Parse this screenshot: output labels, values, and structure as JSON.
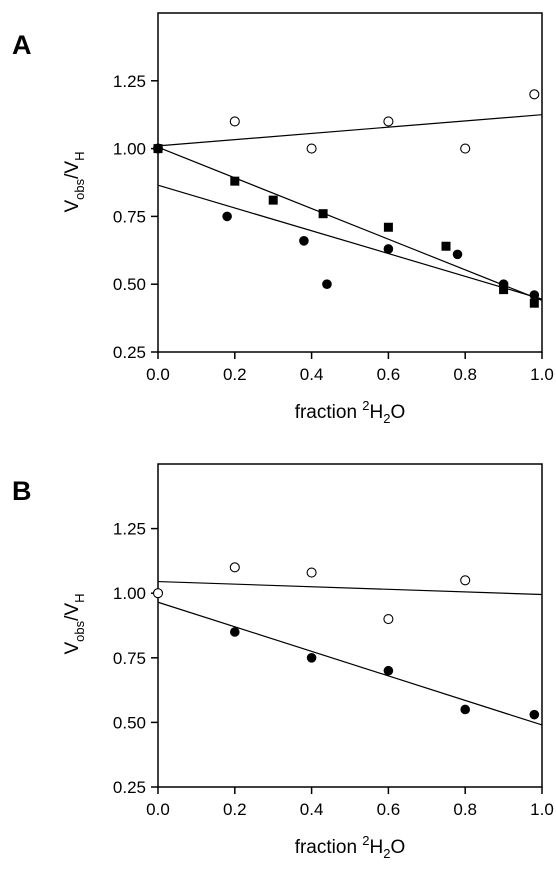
{
  "chart_data": [
    {
      "type": "scatter",
      "panel_label": "A",
      "title": "",
      "xlabel": {
        "base": "fraction ",
        "sup": "2",
        "main": "H",
        "sub": "2",
        "tail": "O"
      },
      "ylabel": {
        "v1": "V",
        "s1": "obs",
        "mid": "/V",
        "s2": "H"
      },
      "xlim": [
        0.0,
        1.0
      ],
      "ylim": [
        0.25,
        1.5
      ],
      "xticks": [
        "0.0",
        "0.2",
        "0.4",
        "0.6",
        "0.8",
        "1.0"
      ],
      "yticks": [
        "0.25",
        "0.50",
        "0.75",
        "1.00",
        "1.25"
      ],
      "grid": false,
      "series": [
        {
          "marker": "open-circle",
          "color": "#000000",
          "x": [
            0.0,
            0.2,
            0.4,
            0.6,
            0.8,
            0.98
          ],
          "y": [
            1.0,
            1.1,
            1.0,
            1.1,
            1.0,
            1.2
          ],
          "fit": [
            [
              0.0,
              1.01
            ],
            [
              1.0,
              1.125
            ]
          ]
        },
        {
          "marker": "filled-square",
          "color": "#000000",
          "x": [
            0.0,
            0.2,
            0.3,
            0.43,
            0.6,
            0.75,
            0.9,
            0.98
          ],
          "y": [
            1.0,
            0.88,
            0.81,
            0.76,
            0.71,
            0.64,
            0.48,
            0.43
          ],
          "fit": [
            [
              0.0,
              1.005
            ],
            [
              1.0,
              0.44
            ]
          ]
        },
        {
          "marker": "filled-circle",
          "color": "#000000",
          "x": [
            0.18,
            0.38,
            0.44,
            0.6,
            0.78,
            0.9,
            0.98
          ],
          "y": [
            0.75,
            0.66,
            0.5,
            0.63,
            0.61,
            0.5,
            0.46
          ],
          "fit": [
            [
              0.0,
              0.865
            ],
            [
              1.0,
              0.445
            ]
          ]
        }
      ]
    },
    {
      "type": "scatter",
      "panel_label": "B",
      "title": "",
      "xlabel": {
        "base": "fraction ",
        "sup": "2",
        "main": "H",
        "sub": "2",
        "tail": "O"
      },
      "ylabel": {
        "v1": "V",
        "s1": "obs",
        "mid": "/V",
        "s2": "H"
      },
      "xlim": [
        0.0,
        1.0
      ],
      "ylim": [
        0.25,
        1.5
      ],
      "xticks": [
        "0.0",
        "0.2",
        "0.4",
        "0.6",
        "0.8",
        "1.0"
      ],
      "yticks": [
        "0.25",
        "0.50",
        "0.75",
        "1.00",
        "1.25"
      ],
      "grid": false,
      "series": [
        {
          "marker": "open-circle",
          "color": "#000000",
          "x": [
            0.0,
            0.2,
            0.4,
            0.6,
            0.8
          ],
          "y": [
            1.0,
            1.1,
            1.08,
            0.9,
            1.05
          ],
          "fit": [
            [
              0.0,
              1.045
            ],
            [
              1.0,
              0.995
            ]
          ]
        },
        {
          "marker": "filled-circle",
          "color": "#000000",
          "x": [
            0.2,
            0.4,
            0.6,
            0.8,
            0.98
          ],
          "y": [
            0.85,
            0.75,
            0.7,
            0.55,
            0.53
          ],
          "fit": [
            [
              0.0,
              0.965
            ],
            [
              1.0,
              0.49
            ]
          ]
        }
      ]
    }
  ]
}
